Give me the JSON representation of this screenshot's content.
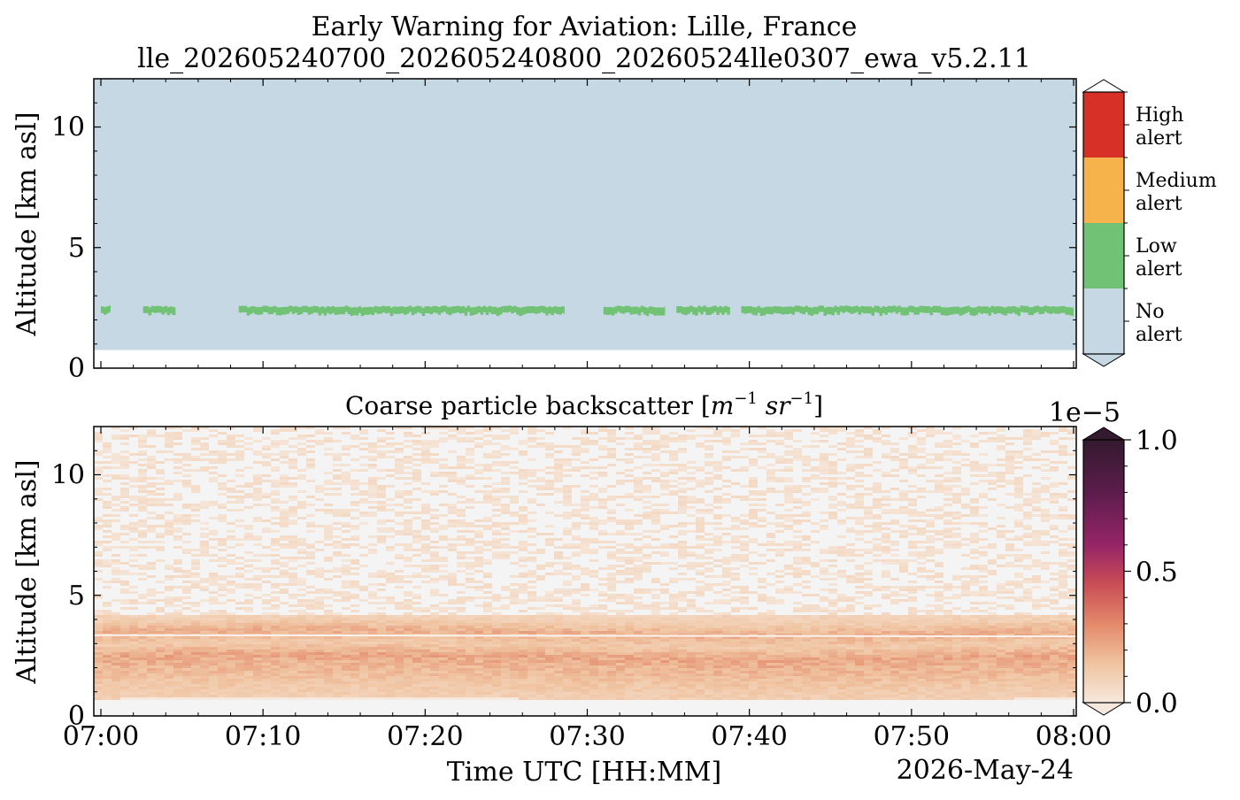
{
  "figure": {
    "title_line1": "Early Warning for Aviation: Lille, France",
    "title_line2": "lle_202605240700_202605240800_20260524lle0307_ewa_v5.2.11",
    "date_label": "2026-May-24"
  },
  "chart_data": [
    {
      "type": "heatmap",
      "title": "",
      "xlabel": "",
      "ylabel": "Altitude [km asl]",
      "xlim": [
        "07:00",
        "08:00"
      ],
      "ylim": [
        0,
        12
      ],
      "yticks": [
        "0",
        "5",
        "10"
      ],
      "data_floor_km": 0.75,
      "background_class": "No alert",
      "colorbar": {
        "type": "categorical",
        "categories": [
          "No alert",
          "Low alert",
          "Medium alert",
          "High alert"
        ],
        "category_lines": [
          [
            "No",
            "alert"
          ],
          [
            "Low",
            "alert"
          ],
          [
            "Medium",
            "alert"
          ],
          [
            "High",
            "alert"
          ]
        ],
        "colors": [
          "#c5d8e4",
          "#71c274",
          "#f6b24b",
          "#d73027"
        ]
      },
      "low_alert_layer": {
        "segments_minutes": [
          [
            0,
            0.6
          ],
          [
            2.6,
            4.6
          ],
          [
            8.5,
            19.8
          ],
          [
            19.8,
            24.8
          ],
          [
            24.8,
            28.6
          ],
          [
            31.0,
            34.8
          ],
          [
            35.5,
            38.8
          ],
          [
            39.5,
            60
          ]
        ],
        "altitude_km": [
          2.25,
          2.55
        ]
      }
    },
    {
      "type": "heatmap",
      "title": "Coarse particle backscatter [m⁻¹ sr⁻¹]",
      "xlabel": "Time UTC [HH:MM]",
      "ylabel": "Altitude [km asl]",
      "xticks": [
        "07:00",
        "07:10",
        "07:20",
        "07:30",
        "07:40",
        "07:50",
        "08:00"
      ],
      "yticks": [
        "0",
        "5",
        "10"
      ],
      "ylim": [
        0,
        12
      ],
      "data_floor_km": 0.75,
      "colorbar": {
        "type": "continuous",
        "colormap": "rocket_r",
        "scale_label": "1e−5",
        "ticks": [
          "0.0",
          "0.5",
          "1.0"
        ],
        "range": [
          0,
          1e-05
        ],
        "colors": [
          "#f6e8dc",
          "#f0c3a0",
          "#e3896a",
          "#ca4d56",
          "#962567",
          "#5c1c4c",
          "#331a2e"
        ]
      },
      "profile_km_vs_relative_value": [
        [
          0.75,
          0.1
        ],
        [
          1.5,
          0.14
        ],
        [
          2.0,
          0.18
        ],
        [
          2.5,
          0.22
        ],
        [
          3.0,
          0.12
        ],
        [
          3.5,
          0.2
        ],
        [
          4.0,
          0.1
        ],
        [
          5.0,
          0.06
        ],
        [
          7.0,
          0.03
        ],
        [
          12.0,
          0.01
        ]
      ]
    }
  ]
}
